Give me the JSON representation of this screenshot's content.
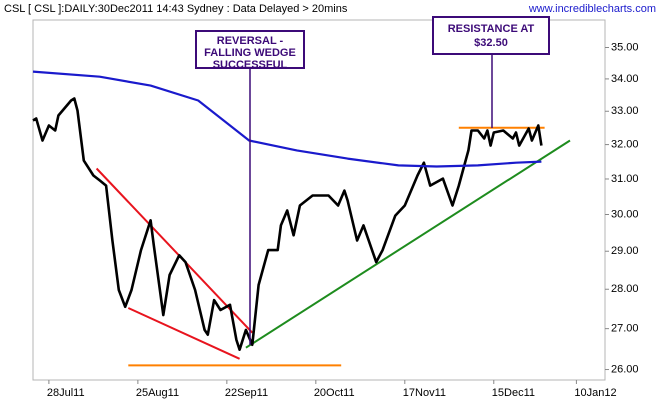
{
  "chart_data": {
    "type": "line",
    "title": "CSL [ CSL ]:DAILY:30Dec2011 14:43 Sydney : Data Delayed > 20mins",
    "source": "www.incrediblecharts.com",
    "log_y": true,
    "xlim": [
      "2011-07-23",
      "2012-01-19"
    ],
    "xticks": [
      {
        "value": "2011-07-28",
        "label": "28Jul11"
      },
      {
        "value": "2011-08-25",
        "label": "25Aug11"
      },
      {
        "value": "2011-09-22",
        "label": "22Sep11"
      },
      {
        "value": "2011-10-20",
        "label": "20Oct11"
      },
      {
        "value": "2011-11-17",
        "label": "17Nov11"
      },
      {
        "value": "2011-12-15",
        "label": "15Dec11"
      },
      {
        "value": "2012-01-10",
        "label": "10Jan12"
      }
    ],
    "ylim": [
      25.75,
      35.9
    ],
    "yticks": [
      {
        "value": 26,
        "label": "26.00"
      },
      {
        "value": 27,
        "label": "27.00"
      },
      {
        "value": 28,
        "label": "28.00"
      },
      {
        "value": 29,
        "label": "29.00"
      },
      {
        "value": 30,
        "label": "30.00"
      },
      {
        "value": 31,
        "label": "31.00"
      },
      {
        "value": 32,
        "label": "32.00"
      },
      {
        "value": 33,
        "label": "33.00"
      },
      {
        "value": 34,
        "label": "34.00"
      },
      {
        "value": 35,
        "label": "35.00"
      }
    ],
    "series": [
      {
        "color": "#000000",
        "x": [
          "2011-07-23",
          "2011-07-24",
          "2011-07-26",
          "2011-07-28",
          "2011-07-30",
          "2011-07-31",
          "2011-08-04",
          "2011-08-05",
          "2011-08-06",
          "2011-08-08",
          "2011-08-11",
          "2011-08-13",
          "2011-08-15",
          "2011-08-17",
          "2011-08-19",
          "2011-08-21",
          "2011-08-23",
          "2011-08-26",
          "2011-08-29",
          "2011-08-30",
          "2011-09-02",
          "2011-09-04",
          "2011-09-07",
          "2011-09-09",
          "2011-09-12",
          "2011-09-15",
          "2011-09-16",
          "2011-09-18",
          "2011-09-20",
          "2011-09-23",
          "2011-09-25",
          "2011-09-26",
          "2011-09-28",
          "2011-09-30",
          "2011-10-02",
          "2011-10-05",
          "2011-10-08",
          "2011-10-09",
          "2011-10-11",
          "2011-10-13",
          "2011-10-15",
          "2011-10-19",
          "2011-10-24",
          "2011-10-27",
          "2011-10-29",
          "2011-10-30",
          "2011-11-02",
          "2011-11-04",
          "2011-11-08",
          "2011-11-10",
          "2011-11-14",
          "2011-11-17",
          "2011-11-21",
          "2011-11-23",
          "2011-11-25",
          "2011-11-29",
          "2011-12-02",
          "2011-12-04",
          "2011-12-07",
          "2011-12-08",
          "2011-12-10",
          "2011-12-12",
          "2011-12-13",
          "2011-12-14",
          "2011-12-15",
          "2011-12-18",
          "2011-12-21",
          "2011-12-22",
          "2011-12-23",
          "2011-12-26",
          "2011-12-27",
          "2011-12-29",
          "2011-12-30"
        ],
        "values": [
          32.72,
          32.78,
          32.12,
          32.57,
          32.42,
          32.87,
          33.33,
          33.39,
          33.02,
          31.53,
          31.1,
          30.96,
          30.81,
          29.29,
          27.98,
          27.55,
          27.98,
          29.03,
          29.84,
          29.16,
          27.34,
          28.37,
          28.89,
          28.71,
          27.98,
          26.97,
          26.85,
          27.72,
          27.47,
          27.6,
          26.72,
          26.48,
          26.97,
          26.6,
          28.11,
          29.03,
          29.03,
          29.7,
          30.11,
          29.43,
          30.25,
          30.53,
          30.53,
          30.25,
          30.67,
          30.39,
          29.29,
          29.7,
          28.71,
          29.03,
          29.97,
          30.25,
          31.1,
          31.47,
          30.81,
          31.01,
          30.25,
          30.81,
          31.83,
          32.42,
          32.42,
          32.18,
          32.42,
          31.97,
          32.36,
          32.42,
          32.18,
          32.36,
          31.97,
          32.48,
          32.12,
          32.57,
          31.97
        ]
      },
      {
        "color": "#1a1acc",
        "x": [
          "2011-07-23",
          "2011-08-13",
          "2011-08-29",
          "2011-09-13",
          "2011-09-29",
          "2011-10-14",
          "2011-10-30",
          "2011-11-15",
          "2011-11-27",
          "2011-12-10",
          "2011-12-22",
          "2011-12-30"
        ],
        "values": [
          34.23,
          34.07,
          33.79,
          33.33,
          32.12,
          31.83,
          31.59,
          31.39,
          31.36,
          31.39,
          31.47,
          31.5
        ]
      }
    ],
    "trendlines": [
      {
        "color": "#e8141e",
        "x": [
          "2011-08-12",
          "2011-09-30"
        ],
        "values": [
          31.3,
          26.9
        ]
      },
      {
        "color": "#e8141e",
        "x": [
          "2011-08-22",
          "2011-09-26"
        ],
        "values": [
          27.52,
          26.26
        ]
      },
      {
        "color": "#ff8000",
        "x": [
          "2011-08-22",
          "2011-10-28"
        ],
        "values": [
          26.1,
          26.1
        ]
      },
      {
        "color": "#ff8000",
        "x": [
          "2011-12-04",
          "2011-12-31"
        ],
        "values": [
          32.5,
          32.5
        ]
      },
      {
        "color": "#1e8c1e",
        "x": [
          "2011-09-28",
          "2012-01-08"
        ],
        "values": [
          26.53,
          32.12
        ]
      }
    ],
    "annotations": [
      {
        "lines": [
          "REVERSAL -",
          "FALLING WEDGE",
          "SUCCESSFUL"
        ]
      },
      {
        "lines": [
          "RESISTANCE AT",
          "$32.50"
        ]
      }
    ]
  }
}
